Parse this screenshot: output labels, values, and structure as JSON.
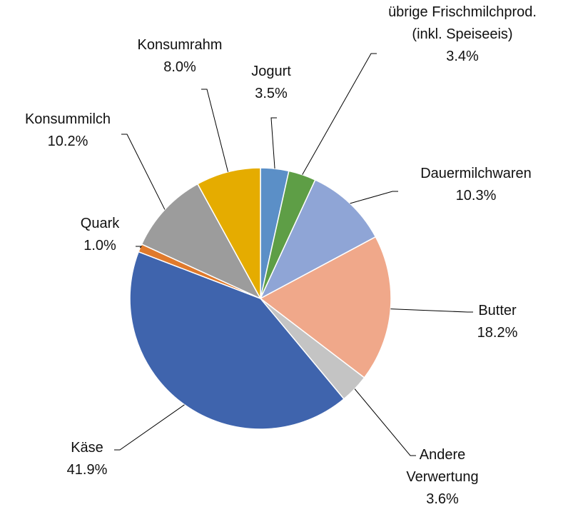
{
  "chart_data": {
    "type": "pie",
    "categories": [
      "Jogurt",
      "übrige Frischmilchprod. (inkl. Speiseeis)",
      "Dauermilchwaren",
      "Butter",
      "Andere Verwertung",
      "Käse",
      "Quark",
      "Konsummilch",
      "Konsumrahm"
    ],
    "values": [
      3.5,
      3.4,
      10.3,
      18.2,
      3.6,
      41.9,
      1.0,
      10.2,
      8.0
    ],
    "value_labels": [
      "3.5%",
      "3.4%",
      "10.3%",
      "18.2%",
      "3.6%",
      "41.9%",
      "1.0%",
      "10.2%",
      "8.0%"
    ],
    "colors": [
      "#5b8fc7",
      "#5e9e46",
      "#8fa5d6",
      "#f0a88a",
      "#c4c4c4",
      "#3f64ad",
      "#e07a2c",
      "#9c9c9c",
      "#e5ac00"
    ]
  }
}
